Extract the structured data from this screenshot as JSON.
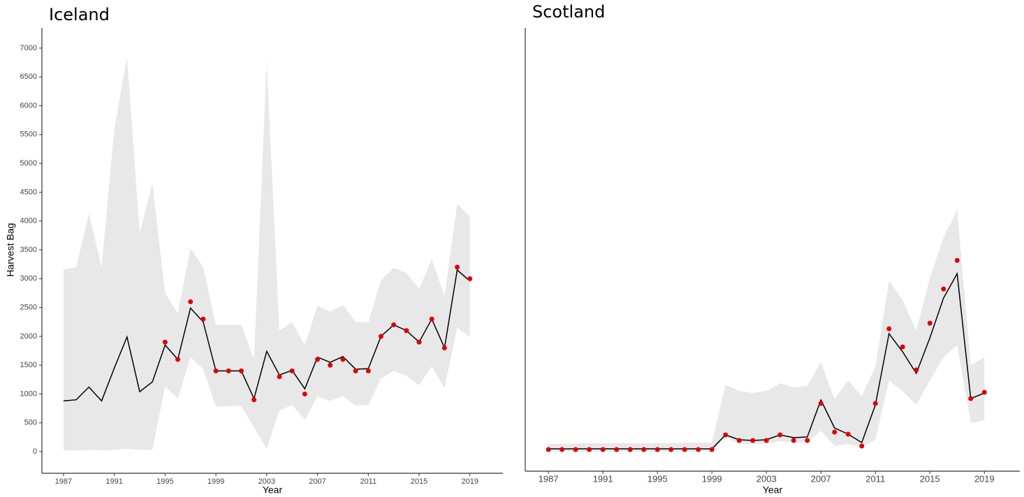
{
  "chart_data": [
    {
      "type": "line",
      "title": "Iceland",
      "x_label": "Year",
      "y_label": "Harvest Bag",
      "x": [
        1987,
        1988,
        1989,
        1990,
        1991,
        1992,
        1993,
        1994,
        1995,
        1996,
        1997,
        1998,
        1999,
        2000,
        2001,
        2002,
        2003,
        2004,
        2005,
        2006,
        2007,
        2008,
        2009,
        2010,
        2011,
        2012,
        2013,
        2014,
        2015,
        2016,
        2017,
        2018,
        2019
      ],
      "xlim": [
        1985.3,
        2021.6
      ],
      "xticks": [
        1987,
        1991,
        1995,
        1999,
        2003,
        2007,
        2011,
        2015,
        2019
      ],
      "ylim": [
        -375,
        7350
      ],
      "yticks": [
        0,
        500,
        1000,
        1500,
        2000,
        2500,
        3000,
        3500,
        4000,
        4500,
        5000,
        5500,
        6000,
        6500,
        7000
      ],
      "series": [
        {
          "style": "band",
          "color": "#e8e8e8",
          "upper": [
            3160,
            3200,
            4130,
            3200,
            5600,
            6850,
            3800,
            4650,
            2750,
            2400,
            3530,
            3200,
            2200,
            2200,
            2200,
            1600,
            6780,
            2100,
            2250,
            1850,
            2530,
            2430,
            2540,
            2250,
            2240,
            2970,
            3190,
            3100,
            2820,
            3340,
            2700,
            4300,
            4080
          ],
          "lower": [
            20,
            20,
            30,
            20,
            30,
            50,
            30,
            30,
            1130,
            920,
            1640,
            1430,
            780,
            790,
            790,
            420,
            50,
            710,
            810,
            550,
            960,
            880,
            960,
            800,
            810,
            1270,
            1400,
            1320,
            1150,
            1480,
            1100,
            2150,
            1990
          ]
        },
        {
          "style": "line",
          "color": "#000000",
          "values": [
            880,
            900,
            1120,
            880,
            1450,
            1990,
            1040,
            1210,
            1850,
            1600,
            2490,
            2250,
            1400,
            1400,
            1400,
            920,
            1740,
            1330,
            1410,
            1090,
            1640,
            1550,
            1650,
            1430,
            1440,
            2000,
            2200,
            2100,
            1900,
            2300,
            1800,
            3150,
            2960
          ]
        },
        {
          "style": "points",
          "color": "#e00000",
          "values": [
            null,
            null,
            null,
            null,
            null,
            null,
            null,
            null,
            1900,
            1600,
            2600,
            2300,
            1400,
            1400,
            1400,
            900,
            null,
            1300,
            1400,
            1000,
            1600,
            1500,
            1600,
            1400,
            1400,
            2000,
            2200,
            2100,
            1900,
            2300,
            1800,
            3200,
            3000
          ]
        }
      ]
    },
    {
      "type": "line",
      "title": "Scotland",
      "x_label": "Year",
      "x": [
        1987,
        1988,
        1989,
        1990,
        1991,
        1992,
        1993,
        1994,
        1995,
        1996,
        1997,
        1998,
        1999,
        2000,
        2001,
        2002,
        2003,
        2004,
        2005,
        2006,
        2007,
        2008,
        2009,
        2010,
        2011,
        2012,
        2013,
        2014,
        2015,
        2016,
        2017,
        2018,
        2019
      ],
      "xlim": [
        1985.3,
        2021.6
      ],
      "xticks": [
        1987,
        1991,
        1995,
        1999,
        2003,
        2007,
        2011,
        2015,
        2019
      ],
      "ylim": [
        -25,
        610
      ],
      "series": [
        {
          "style": "band",
          "color": "#e8e8e8",
          "upper": [
            14,
            14,
            15,
            15,
            15,
            15,
            15,
            15,
            15,
            15,
            16,
            16,
            16,
            99,
            90,
            87,
            90,
            101,
            95,
            97,
            131,
            78,
            105,
            82,
            125,
            248,
            220,
            176,
            252,
            310,
            349,
            127,
            138
          ],
          "lower": [
            3,
            3,
            3,
            3,
            3,
            3,
            3,
            3,
            3,
            3,
            3,
            3,
            3,
            24,
            14,
            14,
            14,
            18,
            16,
            16,
            33,
            11,
            14,
            9,
            20,
            105,
            90,
            70,
            105,
            138,
            156,
            44,
            48
          ]
        },
        {
          "style": "line",
          "color": "#000000",
          "values": [
            7,
            7,
            7,
            7,
            7,
            7,
            7,
            7,
            7,
            7,
            7,
            7,
            7,
            27,
            20,
            19,
            20,
            27,
            23,
            24,
            77,
            37,
            28,
            16,
            70,
            172,
            146,
            115,
            166,
            223,
            258,
            79,
            87
          ]
        },
        {
          "style": "points",
          "color": "#e00000",
          "values": [
            6,
            6,
            6,
            6,
            6,
            6,
            6,
            6,
            6,
            6,
            6,
            6,
            6,
            27,
            19,
            19,
            19,
            27,
            19,
            19,
            72,
            31,
            28,
            11,
            72,
            179,
            153,
            120,
            187,
            236,
            277,
            79,
            88
          ]
        }
      ]
    }
  ]
}
